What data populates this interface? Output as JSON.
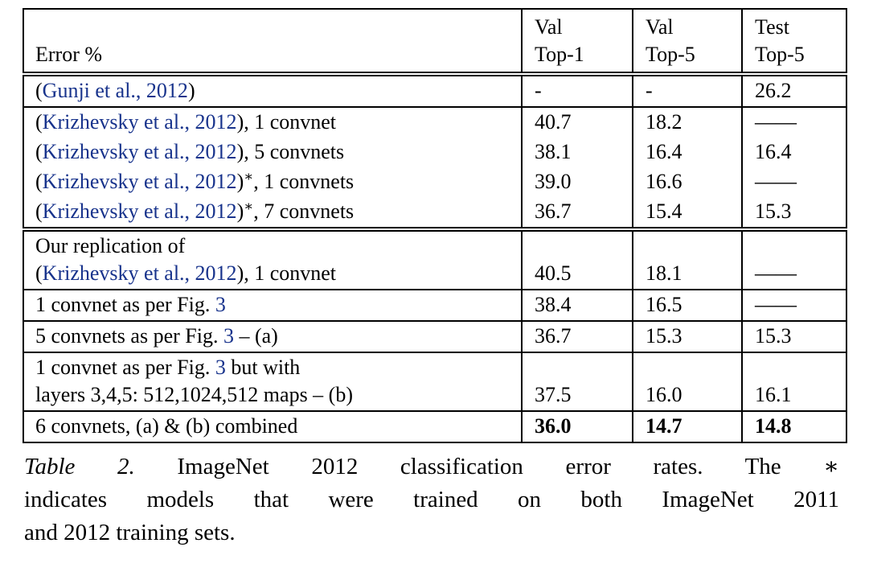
{
  "page": {
    "background": "#ffffff",
    "text_color": "#000000",
    "link_color": "#18338C"
  },
  "table": {
    "header": {
      "col0": "Error %",
      "col1": [
        [
          {
            "t": "Val",
            "s": "p"
          }
        ],
        [
          {
            "t": "Top-1",
            "s": "p"
          }
        ]
      ],
      "col2": [
        [
          {
            "t": "Val",
            "s": "p"
          }
        ],
        [
          {
            "t": "Top-5",
            "s": "p"
          }
        ]
      ],
      "col3": [
        [
          {
            "t": "Test",
            "s": "p"
          }
        ],
        [
          {
            "t": "Top-5",
            "s": "p"
          }
        ]
      ]
    },
    "rows": [
      {
        "label": [
          [
            {
              "t": "(",
              "s": "p"
            },
            {
              "t": "Gunji et al., 2012",
              "s": "c"
            },
            {
              "t": ")",
              "s": "p"
            }
          ]
        ],
        "v1": "-",
        "v2": "-",
        "v3": "26.2"
      },
      {
        "label": [
          [
            {
              "t": "(",
              "s": "p"
            },
            {
              "t": "Krizhevsky et al., 2012",
              "s": "c"
            },
            {
              "t": "), 1 convnet",
              "s": "p"
            }
          ]
        ],
        "v1": "40.7",
        "v2": "18.2",
        "v3": "——"
      },
      {
        "label": [
          [
            {
              "t": "(",
              "s": "p"
            },
            {
              "t": "Krizhevsky et al., 2012",
              "s": "c"
            },
            {
              "t": "), 5 convnets",
              "s": "p"
            }
          ]
        ],
        "v1": "38.1",
        "v2": "16.4",
        "v3": "16.4"
      },
      {
        "label": [
          [
            {
              "t": "(",
              "s": "p"
            },
            {
              "t": "Krizhevsky et al., 2012",
              "s": "c"
            },
            {
              "t": ")",
              "s": "p"
            },
            {
              "t": "∗",
              "s": "sup"
            },
            {
              "t": ", 1 convnets",
              "s": "p"
            }
          ]
        ],
        "v1": "39.0",
        "v2": "16.6",
        "v3": "——"
      },
      {
        "label": [
          [
            {
              "t": "(",
              "s": "p"
            },
            {
              "t": "Krizhevsky et al., 2012",
              "s": "c"
            },
            {
              "t": ")",
              "s": "p"
            },
            {
              "t": "∗",
              "s": "sup"
            },
            {
              "t": ", 7 convnets",
              "s": "p"
            }
          ]
        ],
        "v1": "36.7",
        "v2": "15.4",
        "v3": "15.3"
      },
      {
        "label": [
          [
            {
              "t": "Our replication of",
              "s": "p"
            }
          ],
          [
            {
              "t": "(",
              "s": "p"
            },
            {
              "t": "Krizhevsky et al., 2012",
              "s": "c"
            },
            {
              "t": "), 1 convnet",
              "s": "p"
            }
          ]
        ],
        "v1": "40.5",
        "v2": "18.1",
        "v3": "——"
      },
      {
        "label": [
          [
            {
              "t": "1 convnet as per Fig. ",
              "s": "p"
            },
            {
              "t": "3",
              "s": "c",
              "n": "figure-ref-link"
            }
          ]
        ],
        "v1": "38.4",
        "v2": "16.5",
        "v3": "——"
      },
      {
        "label": [
          [
            {
              "t": "5 convnets as per Fig. ",
              "s": "p"
            },
            {
              "t": "3",
              "s": "c",
              "n": "figure-ref-link"
            },
            {
              "t": " – (a)",
              "s": "p"
            }
          ]
        ],
        "v1": "36.7",
        "v2": "15.3",
        "v3": "15.3"
      },
      {
        "label": [
          [
            {
              "t": "1 convnet as per Fig. ",
              "s": "p"
            },
            {
              "t": "3",
              "s": "c",
              "n": "figure-ref-link"
            },
            {
              "t": " but with",
              "s": "p"
            }
          ],
          [
            {
              "t": "layers 3,4,5: 512,1024,512 maps – (b)",
              "s": "p"
            }
          ]
        ],
        "v1": "37.5",
        "v2": "16.0",
        "v3": "16.1"
      },
      {
        "label": [
          [
            {
              "t": "6 convnets, (a) & (b) combined",
              "s": "p"
            }
          ]
        ],
        "v1": "36.0",
        "v2": "14.7",
        "v3": "14.8"
      }
    ]
  },
  "caption": {
    "lines": [
      [
        {
          "t": "Table 2.",
          "s": "i"
        },
        {
          "t": " ImageNet 2012 classification error rates.  The ∗",
          "s": "p"
        }
      ],
      [
        {
          "t": "indicates models that were trained on both ImageNet 2011",
          "s": "p"
        }
      ],
      [
        {
          "t": "and 2012 training sets.",
          "s": "p"
        }
      ]
    ]
  }
}
